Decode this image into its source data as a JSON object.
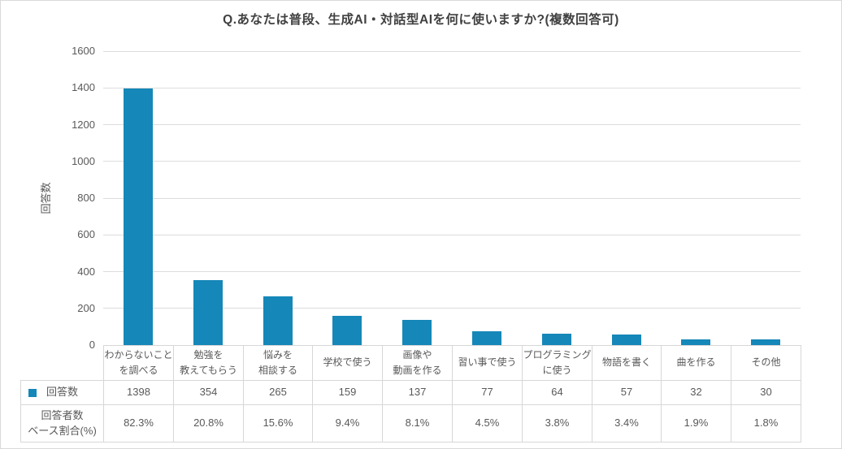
{
  "title": "Q.あなたは普段、生成AI・対話型AIを何に使いますか?(複数回答可)",
  "chart_data": {
    "type": "bar",
    "title": "Q.あなたは普段、生成AI・対話型AIを何に使いますか?(複数回答可)",
    "ylabel": "回答数",
    "xlabel": "",
    "ylim": [
      0,
      1600
    ],
    "ytick_step": 200,
    "grid": true,
    "legend_position": "data-table-left",
    "colors": {
      "bar": "#1587b8",
      "gridline": "#dcdcdc",
      "table_border": "#d7d7d7",
      "text": "#595959",
      "title_text": "#404040"
    },
    "categories": [
      "わからないこと\nを調べる",
      "勉強を\n教えてもらう",
      "悩みを\n相談する",
      "学校で使う",
      "画像や\n動画を作る",
      "習い事で使う",
      "プログラミング\nに使う",
      "物語を書く",
      "曲を作る",
      "その他"
    ],
    "series": [
      {
        "name": "回答数",
        "values": [
          1398,
          354,
          265,
          159,
          137,
          77,
          64,
          57,
          32,
          30
        ]
      },
      {
        "name": "回答者数\nベース割合(%)",
        "values": [
          "82.3%",
          "20.8%",
          "15.6%",
          "9.4%",
          "8.1%",
          "4.5%",
          "3.8%",
          "3.4%",
          "1.9%",
          "1.8%"
        ]
      }
    ]
  }
}
